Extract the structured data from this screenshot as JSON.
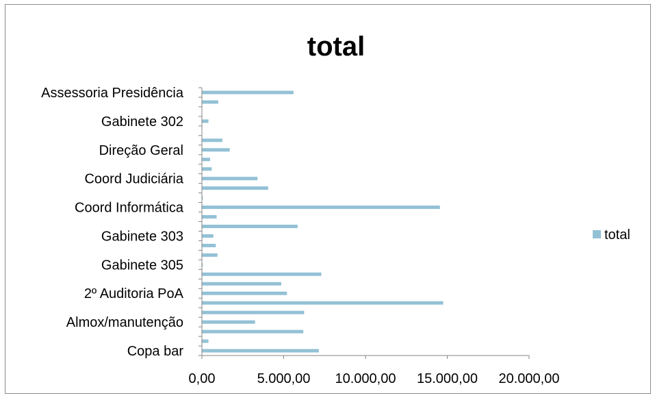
{
  "chart_data": {
    "type": "bar",
    "orientation": "horizontal",
    "title": "total",
    "xlabel": "",
    "ylabel": "",
    "xlim": [
      0,
      20000
    ],
    "x_ticks": [
      0,
      5000,
      10000,
      15000,
      20000
    ],
    "x_tick_labels": [
      "0,00",
      "5.000,00",
      "10.000,00",
      "15.000,00",
      "20.000,00"
    ],
    "categories": [
      "Copa bar",
      "",
      "",
      "Almox/manutenção",
      "",
      "",
      "2º Auditoria PoA",
      "",
      "",
      "Gabinete 305",
      "",
      "",
      "Gabinete 303",
      "",
      "",
      "Coord Informática",
      "",
      "",
      "Coord Judiciária",
      "",
      "",
      "Direção Geral",
      "",
      "",
      "Gabinete 302",
      "",
      "",
      "Assessoria Presidência"
    ],
    "series": [
      {
        "name": "total",
        "color": "#93c1d6",
        "values": [
          7150,
          400,
          6200,
          3250,
          6250,
          14750,
          5200,
          4850,
          7300,
          50,
          950,
          850,
          700,
          5850,
          900,
          14550,
          50,
          4050,
          3400,
          600,
          500,
          1700,
          1250,
          0,
          400,
          0,
          1000,
          5600
        ]
      }
    ],
    "grid": false,
    "legend_position": "right"
  }
}
